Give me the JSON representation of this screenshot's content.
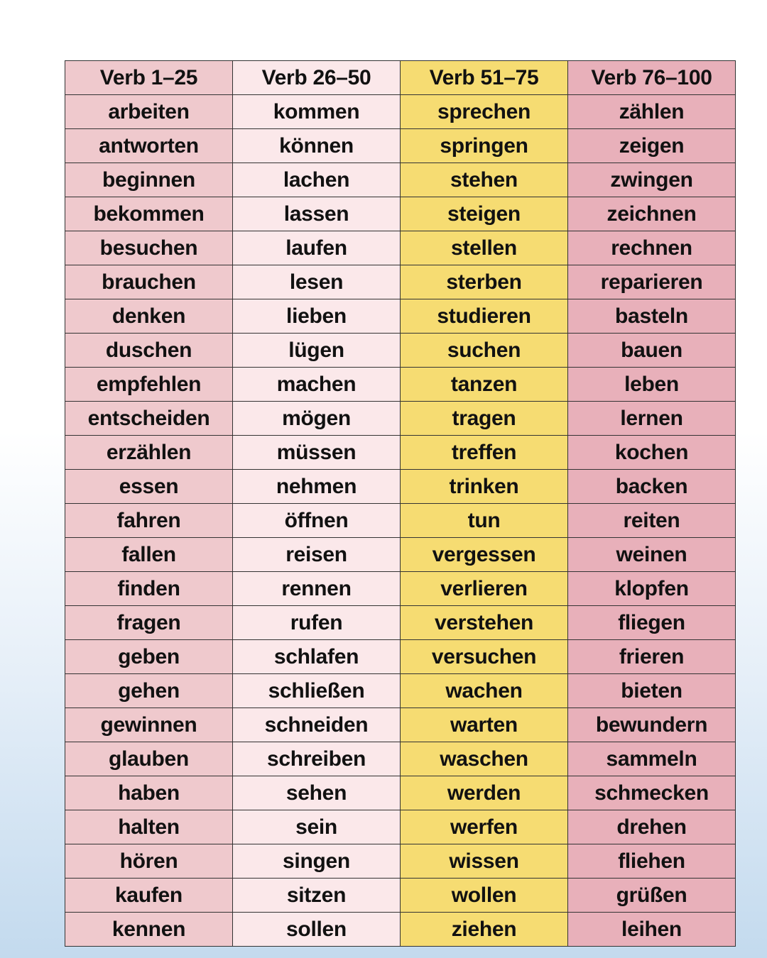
{
  "colors": {
    "col1": "#efc9cd",
    "col2": "#fbe8ea",
    "col3": "#f6dc72",
    "col4": "#e8b0ba"
  },
  "table": {
    "headers": [
      "Verb 1–25",
      "Verb 26–50",
      "Verb 51–75",
      "Verb 76–100"
    ],
    "columns": [
      [
        "arbeiten",
        "antworten",
        "beginnen",
        "bekommen",
        "besuchen",
        "brauchen",
        "denken",
        "duschen",
        "empfehlen",
        "entscheiden",
        "erzählen",
        "essen",
        "fahren",
        "fallen",
        "finden",
        "fragen",
        "geben",
        "gehen",
        "gewinnen",
        "glauben",
        "haben",
        "halten",
        "hören",
        "kaufen",
        "kennen"
      ],
      [
        "kommen",
        "können",
        "lachen",
        "lassen",
        "laufen",
        "lesen",
        "lieben",
        "lügen",
        "machen",
        "mögen",
        "müssen",
        "nehmen",
        "öffnen",
        "reisen",
        "rennen",
        "rufen",
        "schlafen",
        "schließen",
        "schneiden",
        "schreiben",
        "sehen",
        "sein",
        "singen",
        "sitzen",
        "sollen"
      ],
      [
        "sprechen",
        "springen",
        "stehen",
        "steigen",
        "stellen",
        "sterben",
        "studieren",
        "suchen",
        "tanzen",
        "tragen",
        "treffen",
        "trinken",
        "tun",
        "vergessen",
        "verlieren",
        "verstehen",
        "versuchen",
        "wachen",
        "warten",
        "waschen",
        "werden",
        "werfen",
        "wissen",
        "wollen",
        "ziehen"
      ],
      [
        "zählen",
        "zeigen",
        "zwingen",
        "zeichnen",
        "rechnen",
        "reparieren",
        "basteln",
        "bauen",
        "leben",
        "lernen",
        "kochen",
        "backen",
        "reiten",
        "weinen",
        "klopfen",
        "fliegen",
        "frieren",
        "bieten",
        "bewundern",
        "sammeln",
        "schmecken",
        "drehen",
        "fliehen",
        "grüßen",
        "leihen"
      ]
    ]
  }
}
